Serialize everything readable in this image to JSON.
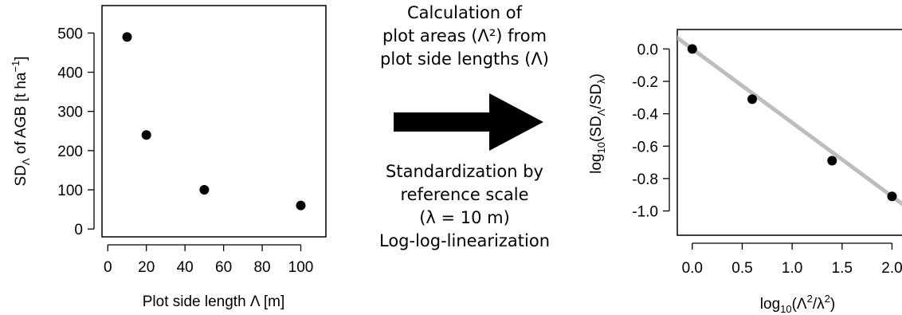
{
  "chart_data": [
    {
      "type": "scatter",
      "x": [
        10,
        20,
        50,
        100
      ],
      "y": [
        490,
        240,
        100,
        60
      ],
      "xlabel": "Plot side length Λ [m]",
      "ylabel_parts": {
        "main": "SD",
        "sub": "Λ",
        "rest": " of AGB [t ha",
        "sup": "−1",
        "end": "]"
      },
      "xlim": [
        -3,
        113
      ],
      "ylim": [
        -20,
        570
      ],
      "xticks": [
        0,
        20,
        40,
        60,
        80,
        100
      ],
      "yticks": [
        0,
        100,
        200,
        300,
        400,
        500
      ],
      "grid": false
    },
    {
      "type": "scatter",
      "x": [
        0.0,
        0.6,
        1.4,
        2.0
      ],
      "y": [
        0.0,
        -0.31,
        -0.69,
        -0.91
      ],
      "fit_line": {
        "slope": -0.455,
        "intercept": 0.0,
        "color": "#bdbdbd"
      },
      "xlabel_parts": {
        "pre": "log",
        "sub": "10",
        "mid": "(Λ",
        "sup1": "2",
        "mid2": "/λ",
        "sup2": "2",
        "end": ")"
      },
      "ylabel_parts": {
        "pre": "log",
        "sub": "10",
        "mid": "(SD",
        "sub2": "Λ",
        "mid2": "/SD",
        "sub3": "λ",
        "end": ")"
      },
      "xlim": [
        -0.15,
        2.1
      ],
      "ylim": [
        -1.15,
        0.12
      ],
      "xticks": [
        "0.0",
        "0.5",
        "1.0",
        "1.5",
        "2.0"
      ],
      "yticks": [
        "0.0",
        "-0.2",
        "-0.4",
        "-0.6",
        "-0.8",
        "-1.0"
      ],
      "grid": false
    }
  ],
  "middle": {
    "top_lines": [
      "Calculation of",
      "plot areas (Λ²) from",
      "plot side lengths (Λ)"
    ],
    "bottom_lines": [
      "Standardization by",
      "reference scale",
      "(λ = 10 m)",
      "Log-log-linearization"
    ]
  }
}
